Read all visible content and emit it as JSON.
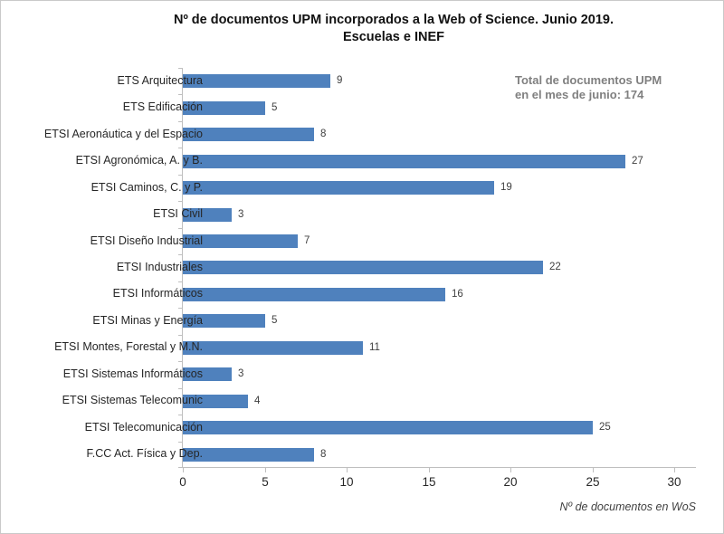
{
  "chart_data": {
    "type": "bar",
    "orientation": "horizontal",
    "title_line1": "Nº de documentos UPM incorporados a la Web of Science. Junio 2019.",
    "title_line2": "Escuelas e INEF",
    "categories": [
      "ETS Arquitectura",
      "ETS Edificación",
      "ETSI Aeronáutica y del Espacio",
      "ETSI Agronómica, A. y B.",
      "ETSI Caminos, C. y P.",
      "ETSI Civil",
      "ETSI Diseño Industrial",
      "ETSI Industriales",
      "ETSI Informáticos",
      "ETSI Minas y Energía",
      "ETSI Montes, Forestal y M.N.",
      "ETSI Sistemas Informáticos",
      "ETSI Sistemas Telecomunic",
      "ETSI Telecomunicación",
      "F.CC Act. Física y Dep."
    ],
    "values": [
      9,
      5,
      8,
      27,
      19,
      3,
      7,
      22,
      16,
      5,
      11,
      3,
      4,
      25,
      8
    ],
    "xlabel": "Nº de documentos en WoS",
    "x_ticks": [
      0,
      5,
      10,
      15,
      20,
      25,
      30
    ],
    "xlim": [
      0,
      31.4
    ],
    "grid": false,
    "legend": "none",
    "bar_color": "#4f81bd",
    "annotation_line1": "Total de documentos UPM",
    "annotation_line2": "en el mes de junio: 174"
  },
  "colors": {
    "bar": "#4f81bd",
    "axis": "#bfbfbf",
    "title": "#111111",
    "annotation": "#808080",
    "value_label": "#3f3f3f",
    "category_label": "#262626"
  }
}
